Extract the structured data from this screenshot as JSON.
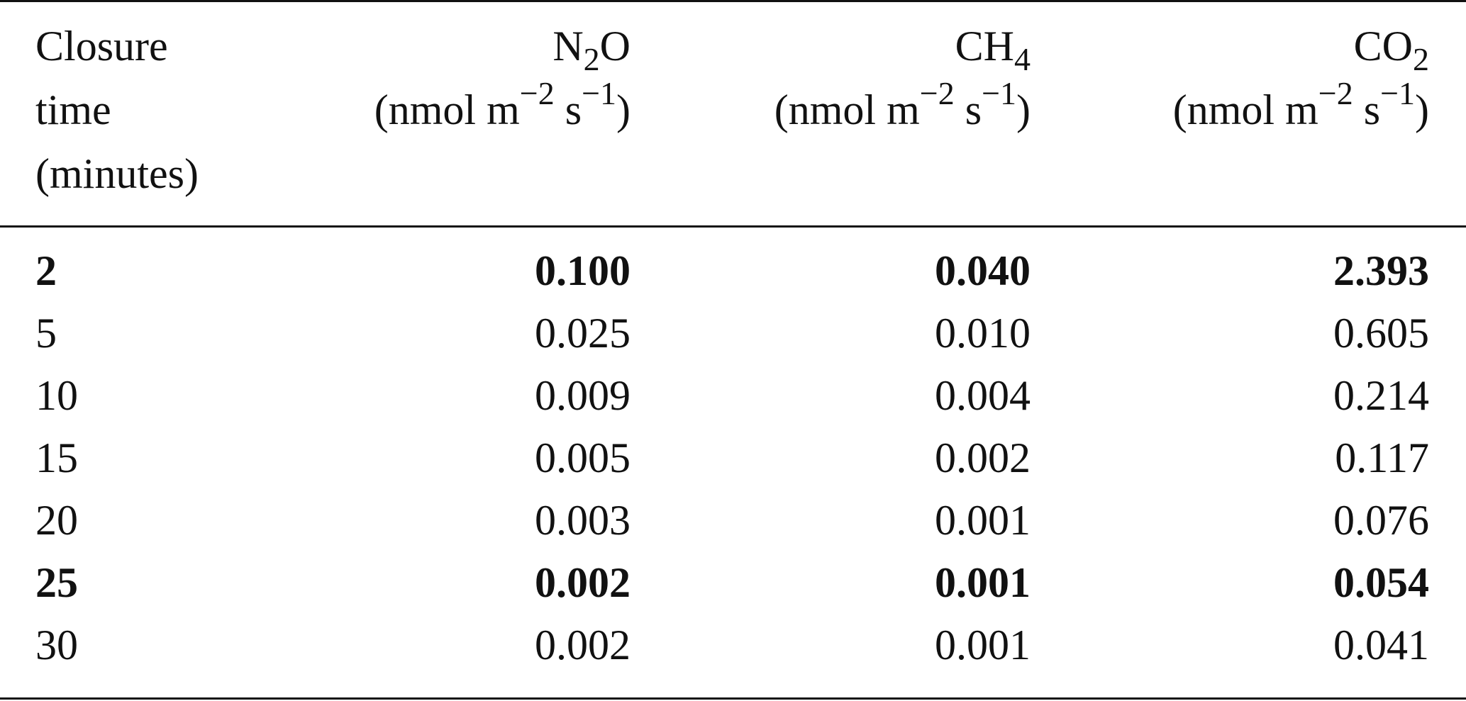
{
  "table": {
    "headers": {
      "time": {
        "line1": "Closure",
        "line2": "time",
        "line3": "(minutes)"
      },
      "n2o": {
        "name_main": "N",
        "name_sub": "2",
        "name_tail": "O",
        "unit_pre": "(nmol m",
        "unit_exp1": "−2",
        "unit_mid": " s",
        "unit_exp2": "−1",
        "unit_post": ")"
      },
      "ch4": {
        "name_main": "CH",
        "name_sub": "4",
        "name_tail": "",
        "unit_pre": "(nmol m",
        "unit_exp1": "−2",
        "unit_mid": " s",
        "unit_exp2": "−1",
        "unit_post": ")"
      },
      "co2": {
        "name_main": "CO",
        "name_sub": "2",
        "name_tail": "",
        "unit_pre": "(nmol m",
        "unit_exp1": "−2",
        "unit_mid": " s",
        "unit_exp2": "−1",
        "unit_post": ")"
      }
    },
    "rows": [
      {
        "time": "2",
        "n2o": "0.100",
        "ch4": "0.040",
        "co2": "2.393",
        "bold": true
      },
      {
        "time": "5",
        "n2o": "0.025",
        "ch4": "0.010",
        "co2": "0.605",
        "bold": false
      },
      {
        "time": "10",
        "n2o": "0.009",
        "ch4": "0.004",
        "co2": "0.214",
        "bold": false
      },
      {
        "time": "15",
        "n2o": "0.005",
        "ch4": "0.002",
        "co2": "0.117",
        "bold": false
      },
      {
        "time": "20",
        "n2o": "0.003",
        "ch4": "0.001",
        "co2": "0.076",
        "bold": false
      },
      {
        "time": "25",
        "n2o": "0.002",
        "ch4": "0.001",
        "co2": "0.054",
        "bold": true
      },
      {
        "time": "30",
        "n2o": "0.002",
        "ch4": "0.001",
        "co2": "0.041",
        "bold": false
      }
    ]
  }
}
